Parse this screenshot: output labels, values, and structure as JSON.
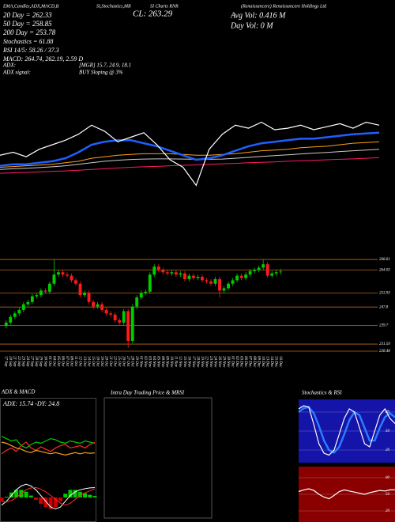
{
  "chart_data": [
    {
      "type": "candlestick",
      "annotations": [
        "EMA,Candles,ADX,MACD,B",
        "SI,Stochastics,MR",
        "SI Charts RNR",
        "(Renaissancere) Renaissancere Holdings Ltd",
        "20 Day = 262.33",
        "50 Day = 258.85",
        "200 Day = 253.78",
        "Stochastics = 61.88",
        "RSI 14/5: 58.26 / 37.3",
        "MACD: 264.74, 262.19, 2.59 D",
        "CL: 263.29",
        "Avg Vol: 0.416 M",
        "Day Vol: 0 M",
        "ADX:",
        "[MGR] 15.7, 24.9, 18.1",
        "ADX signal:",
        "BUY Sloping @ 3%"
      ],
      "categories": [
        "17 Sep",
        "20 Sep",
        "21 Sep",
        "22 Sep",
        "23 Sep",
        "24 Sep",
        "27 Sep",
        "28 Sep",
        "29 Sep",
        "30 Sep",
        "01 Oct",
        "04 Oct",
        "05 Oct",
        "06 Oct",
        "07 Oct",
        "08 Oct",
        "11 Oct",
        "12 Oct",
        "13 Oct",
        "14 Oct",
        "15 Oct",
        "18 Oct",
        "19 Oct",
        "20 Oct",
        "21 Oct",
        "22 Oct",
        "25 Oct",
        "26 Oct",
        "27 Oct",
        "28 Oct",
        "29 Oct",
        "01 Nov",
        "02 Nov",
        "03 Nov",
        "04 Nov",
        "05 Nov",
        "08 Nov",
        "09 Nov",
        "10 Nov",
        "11 Nov",
        "12 Nov",
        "15 Nov",
        "16 Nov",
        "17 Nov",
        "18 Nov",
        "19 Nov",
        "22 Nov",
        "23 Nov",
        "24 Nov",
        "26 Nov",
        "29 Nov",
        "30 Nov",
        "01 Dec",
        "02 Dec",
        "03 Dec",
        "06 Dec",
        "07 Dec",
        "08 Dec",
        "09 Dec",
        "10 Dec",
        "13 Dec",
        "14 Dec",
        "15 Dec",
        "16 Dec"
      ],
      "open": [
        239.5,
        241,
        243.5,
        245,
        246.5,
        249,
        250,
        252.5,
        253,
        255,
        254.5,
        258,
        262,
        263,
        262,
        261.5,
        259.5,
        258,
        253,
        254,
        250,
        248,
        249,
        246.5,
        245,
        244.5,
        242,
        241,
        246,
        233,
        248,
        252,
        254,
        254.5,
        262,
        265.5,
        264,
        263,
        262.5,
        263,
        262,
        262.5,
        260,
        261.5,
        260.5,
        261,
        259.5,
        259,
        258,
        260,
        255,
        256,
        258,
        259.5,
        261.5,
        260.5,
        262,
        263.5,
        264,
        265,
        266.5,
        261.5,
        262.5,
        263
      ],
      "high": [
        242,
        244.5,
        246,
        247.5,
        250,
        251,
        253.5,
        254,
        256,
        256,
        259,
        268.6,
        264,
        264,
        263,
        262.5,
        260.5,
        259,
        255,
        255,
        251,
        250,
        250,
        247.5,
        246,
        245.5,
        243,
        247,
        247,
        249,
        253,
        255,
        255.5,
        263,
        266.5,
        266.5,
        265,
        264,
        264,
        264,
        263.5,
        263.5,
        262.5,
        262.5,
        262,
        262,
        260.5,
        260,
        261,
        261,
        257,
        259,
        260.5,
        262.5,
        262.5,
        263,
        264.5,
        265,
        266,
        268.6,
        267.5,
        263.5,
        264,
        264.5
      ],
      "low": [
        238.5,
        240,
        242.5,
        244,
        245.5,
        248,
        249,
        251.5,
        252,
        253.5,
        253.5,
        257,
        261,
        261,
        260.5,
        258.5,
        257,
        252,
        252,
        249,
        247,
        247,
        245.5,
        244,
        243.5,
        241,
        240,
        240,
        229.9,
        232,
        247,
        251,
        253,
        253.5,
        261,
        263,
        262,
        261.5,
        261.5,
        261,
        261,
        259,
        259,
        259.5,
        259.5,
        258.5,
        258,
        257,
        257,
        252,
        254,
        255,
        257,
        258.5,
        259.5,
        259.5,
        261,
        262.5,
        263,
        264,
        260.5,
        260.5,
        261.5,
        262
      ],
      "close": [
        241,
        243.5,
        245,
        246.5,
        249,
        250,
        252.5,
        253,
        255,
        254.5,
        258,
        262,
        263,
        262,
        261.5,
        259.5,
        258,
        253,
        254,
        250,
        248,
        249,
        246.5,
        245,
        244.5,
        242,
        241,
        246,
        233,
        248,
        252,
        254,
        254.5,
        262,
        265.5,
        264,
        263,
        262.5,
        263,
        262,
        262.5,
        260,
        261.5,
        260.5,
        261,
        259.5,
        259,
        258,
        260,
        255,
        256,
        258,
        259.5,
        261.5,
        260.5,
        262,
        263.5,
        264,
        265,
        266.5,
        261.5,
        262.5,
        263,
        263.29
      ],
      "up_color": "#00cc00",
      "down_color": "#ff1a1a",
      "ylim": [
        227.8,
        270.7
      ],
      "yticks": [
        268.61,
        264.03,
        253.93,
        247.8,
        239.7,
        231.59,
        228.48
      ],
      "grid": true,
      "grid_color": "#b8681a"
    },
    {
      "type": "line",
      "ylim": [
        225,
        275
      ],
      "series": [
        {
          "color": "#ff1a6a",
          "values": [
            236,
            236.3,
            236.6,
            237,
            237.3,
            237.6,
            238,
            238.5,
            239,
            239.5,
            240,
            240.3,
            240.6,
            241,
            241.3,
            241.6,
            242,
            242.3,
            242.6,
            243,
            243.3,
            243.6,
            244,
            244.3,
            244.6,
            245,
            245.3,
            245.6,
            246,
            246.5
          ]
        },
        {
          "color": "#cccccc",
          "values": [
            238.5,
            239,
            239.3,
            239.8,
            240.3,
            241,
            242,
            243,
            244,
            244.7,
            245.2,
            245.5,
            245.6,
            245.6,
            245.5,
            245.3,
            245.3,
            245.5,
            246,
            246.6,
            247.2,
            247.8,
            248.3,
            248.9,
            249.4,
            249.9,
            250.5,
            251,
            251.5,
            252
          ]
        },
        {
          "color": "#ff9f1a",
          "values": [
            240,
            240.5,
            241,
            241.5,
            242,
            243,
            244,
            246,
            247,
            248,
            248.5,
            249,
            249,
            249,
            248.5,
            248,
            248,
            248.5,
            249,
            250,
            251,
            251.5,
            252,
            253,
            253.5,
            254,
            255,
            256,
            256.5,
            257
          ]
        },
        {
          "color": "#1f5fff",
          "values": [
            241,
            242,
            242,
            243,
            244,
            246,
            250,
            255,
            257,
            258,
            258,
            256,
            254,
            251,
            248,
            245,
            246,
            248,
            251,
            254,
            256,
            257,
            258,
            259,
            259,
            260,
            261,
            262,
            262.5,
            263
          ]
        },
        {
          "color": "#ffffff",
          "values": [
            248,
            250,
            247,
            252,
            255,
            258,
            262,
            268,
            264,
            257,
            260,
            263,
            255,
            245,
            240,
            228,
            252,
            262,
            268,
            266,
            270,
            265,
            266,
            268,
            265,
            267,
            269,
            266,
            270,
            268
          ]
        }
      ]
    },
    {
      "type": "line",
      "title": "ADX & MACD",
      "label": "ADX: 15.74 -DY: 24.8",
      "ylim": [
        0,
        50
      ],
      "series": [
        {
          "color": "#00cc00",
          "values": [
            30,
            28,
            26,
            27,
            22,
            20,
            23,
            25,
            24,
            26,
            28,
            27,
            25,
            24,
            26,
            25,
            24,
            26,
            25,
            24
          ]
        },
        {
          "color": "#ff2a2a",
          "values": [
            15,
            18,
            20,
            17,
            22,
            25,
            20,
            18,
            21,
            19,
            17,
            20,
            22,
            23,
            20,
            21,
            22,
            20,
            23,
            24.8
          ]
        },
        {
          "color": "#ff9f1a",
          "values": [
            25,
            24,
            22,
            20,
            19,
            17,
            16,
            18,
            17,
            16,
            15,
            16,
            15,
            14,
            15,
            16,
            15,
            16,
            15.5,
            15.74
          ]
        }
      ]
    },
    {
      "type": "macd",
      "ylim": [
        -6,
        6
      ],
      "up_color": "#00cc00",
      "down_color": "#cc0000",
      "histogram": [
        -1,
        0.2,
        1.3,
        2,
        2,
        1.5,
        0.5,
        -0.6,
        -1.7,
        -2.5,
        -3,
        -2.5,
        -1,
        1,
        2,
        2,
        1.5,
        1.1,
        0.7,
        0.39
      ],
      "series": [
        {
          "color": "#ffffff",
          "values": [
            -2,
            -1,
            0.5,
            2,
            3,
            3.5,
            3,
            2,
            0.5,
            -1,
            -2.5,
            -3,
            -2.5,
            -1,
            0.5,
            1.5,
            2,
            2.3,
            2.5,
            2.59
          ]
        },
        {
          "color": "#ff2a2a",
          "values": [
            -1,
            -1.2,
            -0.8,
            0,
            1,
            2,
            2.5,
            2.6,
            2.2,
            1.5,
            0.5,
            -0.5,
            -1.5,
            -2,
            -1.5,
            -0.5,
            0.5,
            1.2,
            1.8,
            2.2
          ]
        }
      ]
    },
    {
      "type": "blank",
      "title": "Intra Day Trading Price & MRSI"
    },
    {
      "type": "line",
      "title": "Stochastics & RSI",
      "background": "#1414a8",
      "ylim": [
        0,
        100
      ],
      "yticks": [
        80,
        50,
        20
      ],
      "series": [
        {
          "color": "#2a7bff",
          "values": [
            80,
            86,
            88,
            78,
            58,
            35,
            20,
            16,
            25,
            45,
            67,
            80,
            75,
            55,
            35,
            35,
            55,
            72,
            78,
            72
          ]
        },
        {
          "color": "#ffffff",
          "values": [
            85,
            90,
            88,
            60,
            30,
            15,
            12,
            20,
            45,
            70,
            85,
            80,
            55,
            30,
            25,
            50,
            75,
            85,
            70,
            61.88
          ]
        }
      ]
    },
    {
      "type": "line",
      "background": "#8a0000",
      "ylim": [
        0,
        100
      ],
      "yticks": [
        80,
        50,
        20
      ],
      "series": [
        {
          "color": "#ffffff",
          "values": [
            55,
            58,
            60,
            57,
            50,
            45,
            42,
            48,
            55,
            58,
            56,
            54,
            52,
            50,
            53,
            55,
            57,
            56,
            58,
            58.26
          ]
        }
      ]
    }
  ]
}
